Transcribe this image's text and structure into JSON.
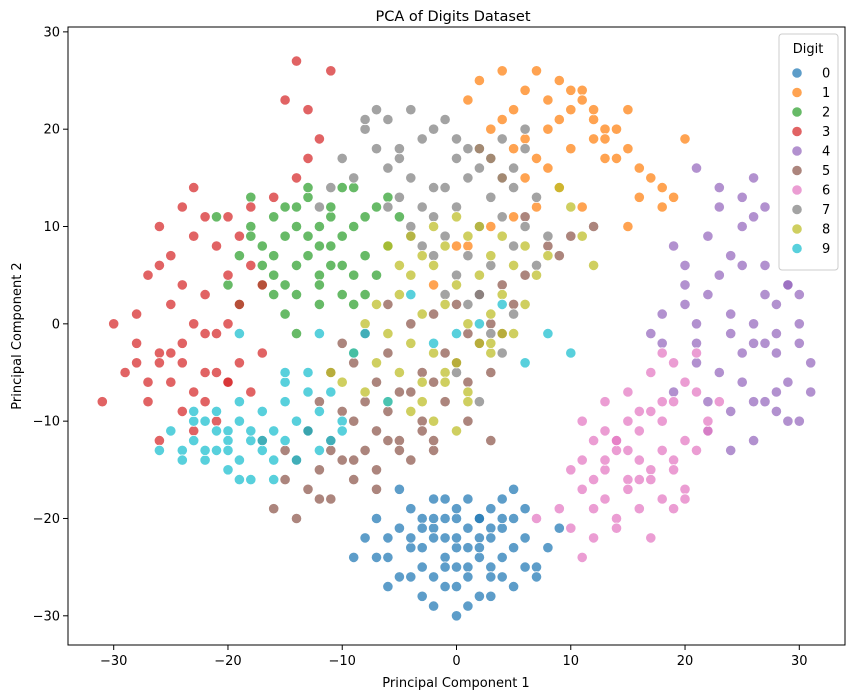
{
  "chart_data": {
    "type": "scatter",
    "title": "PCA of Digits Dataset",
    "xlabel": "Principal Component 1",
    "ylabel": "Principal Component 2",
    "xlim": [
      -34,
      34
    ],
    "ylim": [
      -33,
      30.5
    ],
    "xticks": [
      -30,
      -20,
      -10,
      0,
      10,
      20,
      30
    ],
    "yticks": [
      -30,
      -20,
      -10,
      0,
      10,
      20,
      30
    ],
    "xtick_labels": [
      "−30",
      "−20",
      "−10",
      "0",
      "10",
      "20",
      "30"
    ],
    "ytick_labels": [
      "−30",
      "−20",
      "−10",
      "0",
      "10",
      "20",
      "30"
    ],
    "grid": false,
    "legend": {
      "title": "Digit",
      "placement": "top-right"
    },
    "series": [
      {
        "name": "0",
        "color": "#1f77b4",
        "x": [
          -2,
          0,
          2,
          4,
          -4,
          -1,
          3,
          5,
          -3,
          1,
          -6,
          6,
          -5,
          2,
          0,
          -2,
          4,
          -3,
          3,
          -1,
          1,
          5,
          -4,
          -7,
          7,
          -2,
          2,
          0,
          -5,
          4,
          6,
          -3,
          1,
          -1,
          3,
          -6,
          8,
          -8,
          0,
          2,
          -2,
          5,
          -4,
          4,
          -1,
          1,
          3,
          -3,
          0,
          2,
          -2,
          1,
          -1,
          6,
          -6,
          3,
          -3,
          0,
          9,
          -9,
          2,
          -4,
          4,
          -2,
          0,
          1,
          5,
          -5,
          7,
          -7,
          3,
          -1
        ],
        "y": [
          -21,
          -20,
          -22,
          -21,
          -23,
          -24,
          -19,
          -23,
          -20,
          -25,
          -22,
          -22,
          -26,
          -24,
          -27,
          -18,
          -26,
          -28,
          -28,
          -22,
          -21,
          -20,
          -19,
          -24,
          -25,
          -26,
          -23,
          -19,
          -21,
          -18,
          -19,
          -25,
          -26,
          -20,
          -21,
          -27,
          -23,
          -22,
          -23,
          -28,
          -29,
          -27,
          -22,
          -24,
          -18,
          -18,
          -22,
          -23,
          -30,
          -20,
          -20,
          -23,
          -25,
          -25,
          -24,
          -25,
          -21,
          -25,
          -21,
          -24,
          -20,
          -26,
          -20,
          -22,
          -22,
          -29,
          -17,
          -17,
          -26,
          -20,
          -26,
          -27
        ]
      },
      {
        "name": "1",
        "color": "#ff7f0e",
        "x": [
          2,
          4,
          6,
          8,
          10,
          12,
          3,
          5,
          7,
          9,
          11,
          13,
          15,
          1,
          4,
          6,
          8,
          10,
          12,
          14,
          16,
          18,
          3,
          5,
          7,
          9,
          11,
          13,
          15,
          17,
          19,
          6,
          8,
          10,
          12,
          14,
          2,
          4,
          16,
          20,
          9,
          11,
          7,
          13,
          5,
          3,
          1,
          18,
          15,
          -2,
          0
        ],
        "y": [
          25,
          26,
          24,
          23,
          22,
          21,
          20,
          22,
          26,
          25,
          24,
          20,
          18,
          23,
          21,
          19,
          20,
          18,
          19,
          17,
          16,
          14,
          17,
          18,
          17,
          21,
          23,
          19,
          22,
          15,
          13,
          15,
          16,
          24,
          22,
          20,
          18,
          15,
          13,
          19,
          14,
          12,
          12,
          17,
          11,
          10,
          8,
          12,
          10,
          4,
          8
        ]
      },
      {
        "name": "2",
        "color": "#2ca02c",
        "x": [
          -18,
          -16,
          -14,
          -12,
          -10,
          -8,
          -17,
          -15,
          -13,
          -11,
          -9,
          -7,
          -19,
          -16,
          -14,
          -12,
          -10,
          -8,
          -6,
          -15,
          -13,
          -11,
          -9,
          -18,
          -16,
          -14,
          -12,
          -10,
          -20,
          -17,
          -13,
          -11,
          -9,
          -7,
          -15,
          -19,
          -14,
          -12,
          -8,
          -10,
          -16,
          -18,
          -13,
          -11,
          -6,
          -5,
          -14,
          -9,
          -12,
          -17,
          -21,
          -15
        ],
        "y": [
          10,
          11,
          12,
          10,
          9,
          11,
          8,
          9,
          7,
          8,
          10,
          12,
          7,
          5,
          6,
          5,
          6,
          7,
          8,
          12,
          13,
          11,
          14,
          13,
          3,
          3,
          2,
          3,
          4,
          6,
          9,
          6,
          5,
          5,
          1,
          2,
          -1,
          4,
          3,
          14,
          7,
          9,
          14,
          12,
          13,
          11,
          10,
          2,
          8,
          4,
          11,
          4
        ]
      },
      {
        "name": "3",
        "color": "#d62728",
        "x": [
          -28,
          -26,
          -24,
          -22,
          -20,
          -18,
          -27,
          -25,
          -23,
          -21,
          -19,
          -17,
          -29,
          -26,
          -24,
          -22,
          -20,
          -28,
          -25,
          -23,
          -21,
          -19,
          -27,
          -24,
          -22,
          -20,
          -26,
          -23,
          -21,
          -25,
          -22,
          -24,
          -20,
          -18,
          -28,
          -30,
          -31,
          -26,
          -23,
          -21,
          -19,
          -17,
          -25,
          -22,
          -27,
          -24,
          -14,
          -13,
          -12,
          -15,
          -11,
          -13,
          -14,
          -16,
          -18,
          -20,
          -23,
          -26
        ],
        "y": [
          -2,
          -3,
          -4,
          -5,
          -6,
          -7,
          -6,
          -6,
          -7,
          -5,
          -4,
          -3,
          -5,
          -4,
          -2,
          -1,
          0,
          1,
          2,
          0,
          -1,
          2,
          -8,
          -9,
          -8,
          -6,
          -12,
          -11,
          -10,
          -3,
          3,
          4,
          5,
          6,
          -4,
          0,
          -8,
          6,
          9,
          8,
          9,
          4,
          7,
          11,
          5,
          12,
          27,
          22,
          19,
          23,
          26,
          17,
          15,
          13,
          12,
          11,
          14,
          10
        ]
      },
      {
        "name": "4",
        "color": "#9467bd",
        "x": [
          20,
          22,
          24,
          26,
          28,
          30,
          21,
          23,
          25,
          27,
          29,
          31,
          19,
          22,
          24,
          26,
          28,
          30,
          20,
          23,
          25,
          27,
          29,
          18,
          21,
          24,
          26,
          28,
          30,
          19,
          22,
          25,
          27,
          29,
          23,
          26,
          28,
          20,
          24,
          27,
          30,
          17,
          21,
          25,
          28,
          31,
          22,
          26,
          29,
          24,
          27,
          25,
          23,
          26,
          21,
          18
        ],
        "y": [
          2,
          3,
          1,
          0,
          -1,
          -2,
          -4,
          -5,
          -3,
          -2,
          -6,
          -7,
          -7,
          -8,
          -9,
          -8,
          -9,
          -10,
          4,
          5,
          6,
          3,
          4,
          1,
          0,
          -1,
          -2,
          -3,
          0,
          8,
          9,
          10,
          12,
          4,
          12,
          11,
          2,
          6,
          7,
          6,
          3,
          -1,
          -2,
          -6,
          -7,
          -4,
          -11,
          -12,
          -10,
          -13,
          -8,
          13,
          14,
          15,
          16,
          -2
        ]
      },
      {
        "name": "5",
        "color": "#8c564b",
        "x": [
          -10,
          -8,
          -6,
          -4,
          -2,
          0,
          2,
          4,
          6,
          -11,
          -9,
          -7,
          -5,
          -3,
          -1,
          1,
          3,
          5,
          -12,
          -10,
          -8,
          -6,
          -4,
          -2,
          0,
          2,
          4,
          -13,
          -11,
          -9,
          -7,
          -5,
          -3,
          -1,
          1,
          3,
          -14,
          -12,
          -10,
          -8,
          -6,
          -4,
          -2,
          -15,
          -13,
          -11,
          -9,
          -7,
          -16,
          -14,
          -12,
          8,
          10,
          12,
          6,
          9,
          -3,
          1,
          3,
          -6,
          -15,
          -17,
          -13,
          -11,
          -9,
          -7,
          -5,
          -2
        ],
        "y": [
          -2,
          -1,
          -3,
          0,
          1,
          2,
          3,
          4,
          5,
          -5,
          -4,
          -6,
          -7,
          -5,
          -3,
          -1,
          0,
          2,
          -8,
          -9,
          -8,
          -9,
          -7,
          -6,
          -4,
          -2,
          -1,
          -11,
          -12,
          -10,
          -11,
          -12,
          -10,
          -8,
          -6,
          -5,
          -14,
          -15,
          -14,
          -13,
          -12,
          -14,
          -13,
          -16,
          -17,
          -18,
          -16,
          -15,
          -19,
          -20,
          -18,
          8,
          9,
          10,
          11,
          7,
          -11,
          -10,
          -12,
          2,
          -13,
          -12,
          -11,
          -13,
          -14,
          -17,
          -13,
          -12
        ]
      },
      {
        "name": "6",
        "color": "#e377c2",
        "x": [
          12,
          14,
          16,
          18,
          20,
          22,
          13,
          15,
          17,
          19,
          21,
          11,
          13,
          15,
          17,
          19,
          12,
          14,
          16,
          18,
          20,
          10,
          12,
          14,
          16,
          18,
          11,
          13,
          15,
          17,
          19,
          21,
          10,
          12,
          14,
          16,
          18,
          20,
          17,
          19,
          21,
          15,
          13,
          11,
          9,
          7,
          19,
          17,
          15,
          13,
          11,
          14,
          16,
          22,
          23,
          20,
          18
        ],
        "y": [
          -12,
          -13,
          -14,
          -13,
          -12,
          -11,
          -15,
          -16,
          -15,
          -14,
          -13,
          -17,
          -18,
          -17,
          -16,
          -15,
          -19,
          -20,
          -19,
          -18,
          -17,
          -21,
          -22,
          -21,
          -9,
          -10,
          -10,
          -11,
          -10,
          -9,
          -8,
          -7,
          -15,
          -16,
          -12,
          -11,
          -8,
          -6,
          -5,
          -4,
          -3,
          -7,
          -8,
          -14,
          -19,
          -20,
          -19,
          -22,
          -13,
          -14,
          -24,
          -12,
          -16,
          -10,
          -8,
          -18,
          -3
        ]
      },
      {
        "name": "7",
        "color": "#7f7f7f",
        "x": [
          -8,
          -6,
          -4,
          -2,
          0,
          2,
          4,
          6,
          -7,
          -5,
          -3,
          -1,
          1,
          3,
          5,
          -6,
          -4,
          -2,
          0,
          2,
          4,
          6,
          -5,
          -3,
          -1,
          1,
          3,
          5,
          7,
          -4,
          -2,
          0,
          2,
          4,
          6,
          8,
          -3,
          -1,
          1,
          3,
          5,
          7,
          -9,
          -8,
          -7,
          -5,
          -6,
          -4,
          -2,
          0,
          2,
          -1,
          1,
          3,
          5,
          -10,
          -11,
          -12,
          0,
          2,
          4
        ],
        "y": [
          20,
          21,
          22,
          20,
          19,
          18,
          19,
          20,
          18,
          17,
          19,
          21,
          18,
          17,
          16,
          16,
          15,
          14,
          17,
          16,
          15,
          18,
          13,
          12,
          14,
          15,
          13,
          14,
          13,
          10,
          11,
          12,
          10,
          11,
          10,
          9,
          8,
          9,
          7,
          6,
          8,
          6,
          15,
          21,
          22,
          18,
          12,
          9,
          7,
          5,
          3,
          3,
          2,
          -1,
          1,
          17,
          14,
          12,
          -5,
          -8,
          -3
        ]
      },
      {
        "name": "8",
        "color": "#bcbd22",
        "x": [
          -6,
          -4,
          -2,
          0,
          2,
          4,
          6,
          8,
          -5,
          -3,
          -1,
          1,
          3,
          5,
          7,
          -4,
          -2,
          0,
          2,
          4,
          6,
          -7,
          -5,
          -3,
          -1,
          1,
          3,
          5,
          -8,
          -6,
          -4,
          -2,
          0,
          2,
          4,
          -9,
          -7,
          -5,
          -3,
          -1,
          1,
          3,
          -10,
          -8,
          -6,
          -4,
          -2,
          0,
          -11,
          -9,
          10,
          11,
          12,
          9,
          -1,
          1,
          3,
          -3
        ],
        "y": [
          8,
          9,
          10,
          11,
          10,
          9,
          8,
          7,
          6,
          7,
          8,
          9,
          7,
          6,
          5,
          5,
          6,
          4,
          5,
          3,
          2,
          2,
          3,
          1,
          2,
          0,
          1,
          -1,
          0,
          -1,
          -2,
          -3,
          -4,
          -2,
          -1,
          -3,
          -4,
          -5,
          -6,
          -5,
          -7,
          -3,
          -6,
          -7,
          -8,
          -9,
          -10,
          -11,
          -5,
          -3,
          12,
          9,
          6,
          14,
          -6,
          -8,
          -2,
          -8
        ]
      },
      {
        "name": "9",
        "color": "#17becf",
        "x": [
          -22,
          -20,
          -18,
          -16,
          -14,
          -12,
          -10,
          -21,
          -19,
          -17,
          -15,
          -13,
          -11,
          -23,
          -21,
          -19,
          -17,
          -15,
          -13,
          -24,
          -22,
          -20,
          -18,
          -16,
          -25,
          -23,
          -21,
          -19,
          -26,
          -24,
          -22,
          -20,
          -18,
          -14,
          -12,
          -16,
          -19,
          -15,
          -11,
          -13,
          -9,
          -8,
          -12,
          -15,
          -17,
          -20,
          -23,
          -2,
          0,
          2,
          -4,
          8,
          10,
          6,
          4,
          -6,
          -19,
          -10
        ],
        "y": [
          -10,
          -11,
          -12,
          -11,
          -10,
          -9,
          -10,
          -13,
          -14,
          -13,
          -12,
          -11,
          -12,
          -12,
          -11,
          -10,
          -9,
          -8,
          -7,
          -13,
          -14,
          -15,
          -16,
          -14,
          -11,
          -10,
          -9,
          -8,
          -13,
          -14,
          -13,
          -12,
          -11,
          -14,
          -13,
          -16,
          -16,
          -6,
          -7,
          -5,
          -3,
          -1,
          -1,
          -5,
          -12,
          -13,
          -9,
          -2,
          -1,
          0,
          3,
          -1,
          -3,
          -4,
          2,
          -8,
          -1,
          -11
        ]
      }
    ]
  }
}
